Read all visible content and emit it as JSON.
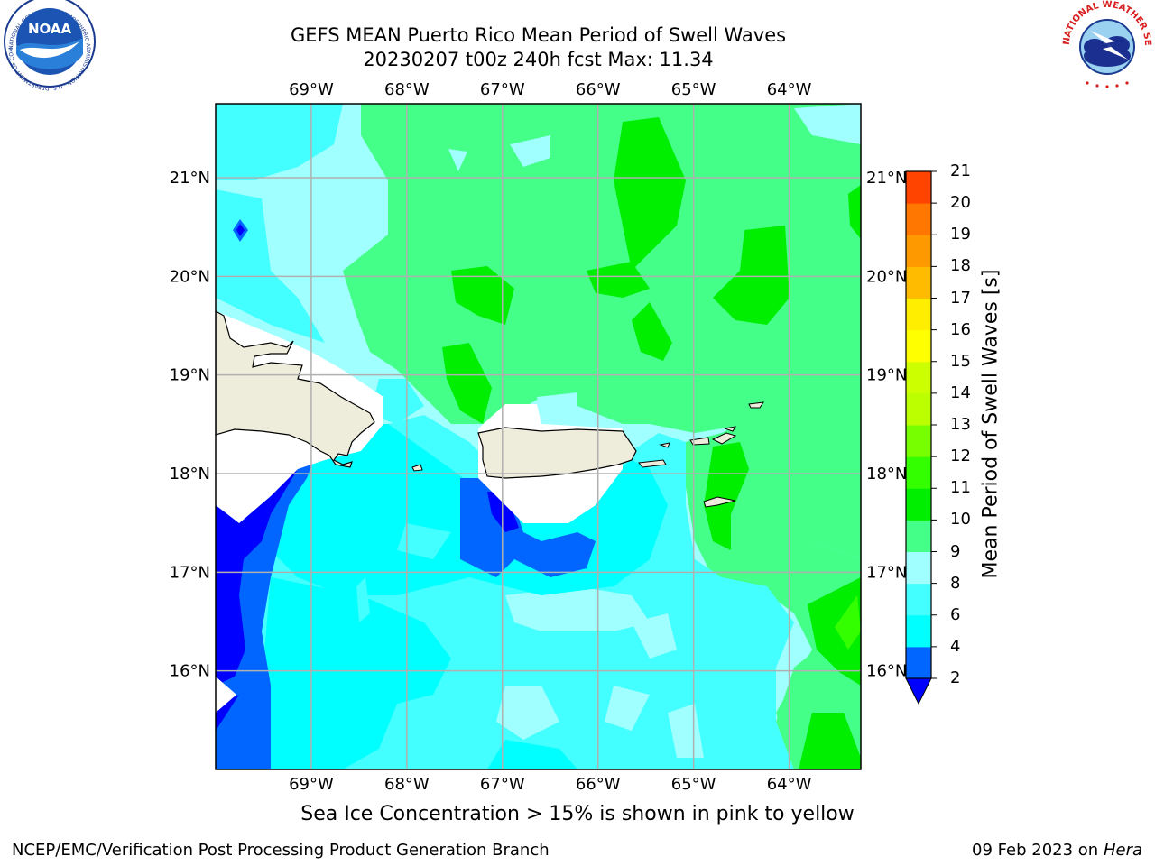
{
  "title_line1": "GEFS MEAN Puerto Rico Mean Period of Swell Waves",
  "title_line2": "20230207 t00z 240h fcst   Max: 11.34",
  "logos": {
    "noaa_text": "NOAA",
    "noaa_ring": "NATIONAL OCEANIC AND ATMOSPHERIC ADMINISTRATION · U.S. DEPARTMENT OF COMMERCE",
    "nws_ring": "NATIONAL WEATHER SERVICE"
  },
  "map": {
    "lon_labels": [
      "69°W",
      "68°W",
      "67°W",
      "66°W",
      "65°W",
      "64°W"
    ],
    "lat_labels": [
      "21°N",
      "20°N",
      "19°N",
      "18°N",
      "17°N",
      "16°N"
    ],
    "lon_values": [
      -69,
      -68,
      -67,
      -66,
      -65,
      -64
    ],
    "lat_values": [
      21,
      20,
      19,
      18,
      17,
      16
    ],
    "extent": {
      "lon_min": -70.0,
      "lon_max": -63.25,
      "lat_min": 15.0,
      "lat_max": 21.75
    },
    "max_value": 11.34,
    "land_color": "#eeecdb",
    "grid_color": "#b0b0b0"
  },
  "colorbar": {
    "title": "Mean Period of Swell Waves [s]",
    "levels": [
      2,
      4,
      6,
      8,
      9,
      10,
      11,
      12,
      13,
      14,
      15,
      16,
      17,
      18,
      19,
      20,
      21
    ],
    "labels": [
      "2",
      "4",
      "6",
      "8",
      "9",
      "10",
      "11",
      "12",
      "13",
      "14",
      "15",
      "16",
      "17",
      "18",
      "19",
      "20",
      "21"
    ],
    "colors": [
      "#0066ff",
      "#00ffff",
      "#44ffff",
      "#a0ffff",
      "#44ff88",
      "#00ee00",
      "#33ff00",
      "#77ff00",
      "#bbff00",
      "#ccff00",
      "#ffff00",
      "#ffee00",
      "#ffbb00",
      "#ff9900",
      "#ff7700",
      "#ff4400",
      "#ff0000"
    ],
    "extend_below_color": "#0000ff"
  },
  "caption": "Sea Ice Concentration > 15% is shown in pink to yellow",
  "footer_left": "NCEP/EMC/Verification Post Processing Product Generation Branch",
  "footer_date": "09 Feb 2023 on",
  "footer_host": "Hera"
}
